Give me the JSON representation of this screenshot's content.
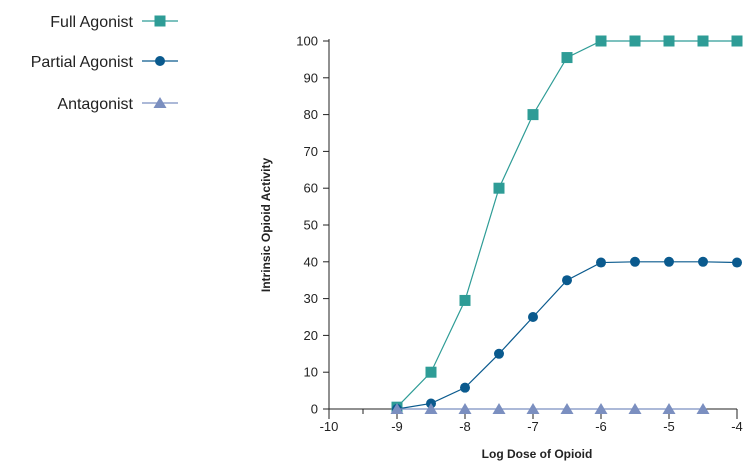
{
  "chart_data": {
    "type": "line",
    "xlabel": "Log Dose of Opioid",
    "ylabel": "Intrinsic Opioid Activity",
    "xlim": [
      -10,
      -4
    ],
    "ylim": [
      0,
      100
    ],
    "x_ticks": [
      -10,
      -9,
      -8,
      -7,
      -6,
      -5,
      -4
    ],
    "y_ticks": [
      0,
      10,
      20,
      30,
      40,
      50,
      60,
      70,
      80,
      90,
      100
    ],
    "legend_position": "top-left",
    "grid": false,
    "series": [
      {
        "name": "Full Agonist",
        "marker": "square",
        "color": "#2e9c96",
        "x": [
          -9,
          -8.5,
          -8,
          -7.5,
          -7,
          -6.5,
          -6,
          -5.5,
          -5,
          -4.5,
          -4
        ],
        "values": [
          0.5,
          10,
          29.5,
          60,
          80,
          95.5,
          100,
          100,
          100,
          100,
          100
        ]
      },
      {
        "name": "Partial Agonist",
        "marker": "circle",
        "color": "#0a5a8e",
        "x": [
          -9,
          -8.5,
          -8,
          -7.5,
          -7,
          -6.5,
          -6,
          -5.5,
          -5,
          -4.5,
          -4
        ],
        "values": [
          0,
          1.5,
          5.8,
          15,
          25,
          35,
          39.8,
          40,
          40,
          40,
          39.8
        ]
      },
      {
        "name": "Antagonist",
        "marker": "triangle",
        "color": "#7b8fc0",
        "x": [
          -9,
          -8.5,
          -8,
          -7.5,
          -7,
          -6.5,
          -6,
          -5.5,
          -5,
          -4.5
        ],
        "values": [
          0,
          0,
          0,
          0,
          0,
          0,
          0,
          0,
          0,
          0
        ]
      }
    ]
  }
}
